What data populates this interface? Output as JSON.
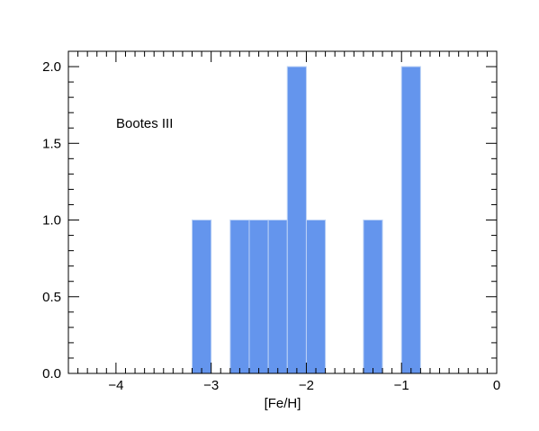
{
  "chart_data": {
    "type": "bar",
    "title": "",
    "annotation": "Bootes III",
    "xlabel": "[Fe/H]",
    "ylabel": "",
    "xlim": [
      -4.5,
      0
    ],
    "ylim": [
      0,
      2.1
    ],
    "bin_width": 0.2,
    "bar_color": "#6495ED",
    "edge_color": "#bcd2f6",
    "grid": false,
    "x_ticks": [
      {
        "value": -4,
        "label": "−4"
      },
      {
        "value": -3,
        "label": "−3"
      },
      {
        "value": -2,
        "label": "−2"
      },
      {
        "value": -1,
        "label": "−1"
      },
      {
        "value": 0,
        "label": "0"
      }
    ],
    "y_ticks": [
      {
        "value": 0,
        "label": "0.0"
      },
      {
        "value": 0.5,
        "label": "0.5"
      },
      {
        "value": 1.0,
        "label": "1.0"
      },
      {
        "value": 1.5,
        "label": "1.5"
      },
      {
        "value": 2.0,
        "label": "2.0"
      }
    ],
    "bins": [
      {
        "start": -3.2,
        "count": 1
      },
      {
        "start": -2.8,
        "count": 1
      },
      {
        "start": -2.6,
        "count": 1
      },
      {
        "start": -2.4,
        "count": 1
      },
      {
        "start": -2.2,
        "count": 2
      },
      {
        "start": -2.0,
        "count": 1
      },
      {
        "start": -1.4,
        "count": 1
      },
      {
        "start": -1.0,
        "count": 2
      }
    ]
  }
}
